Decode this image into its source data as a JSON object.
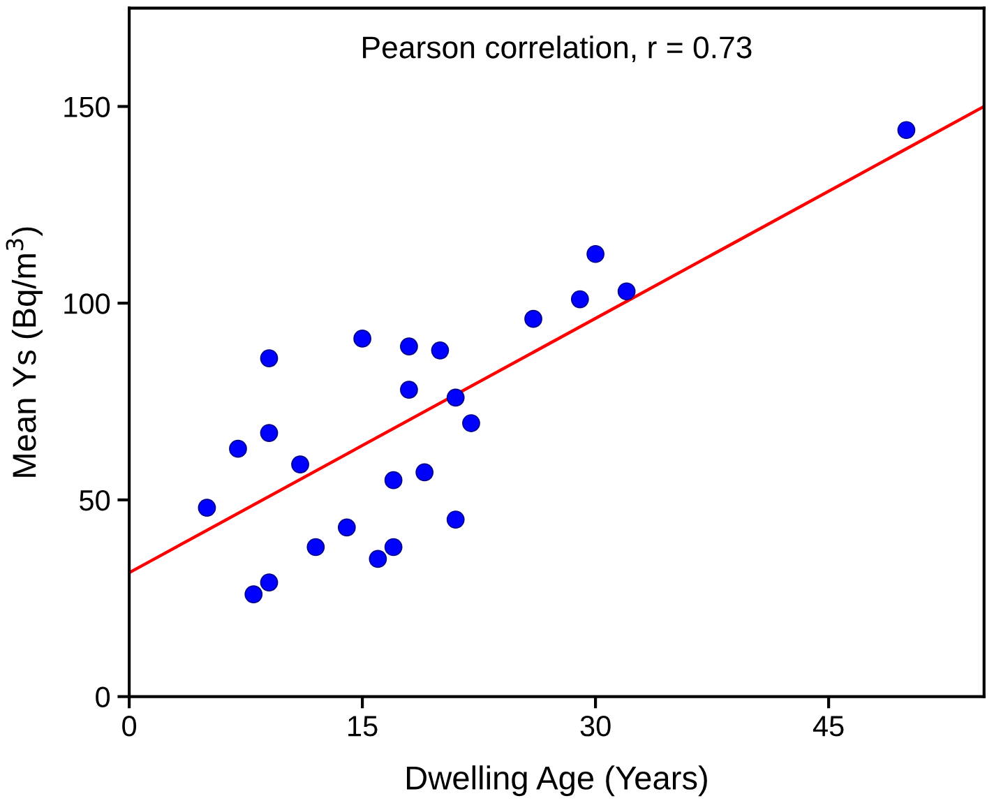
{
  "chart_data": {
    "type": "scatter",
    "xlabel": "Dwelling Age (Years)",
    "ylabel": "Mean Ys (Bq/m$^{3}$)",
    "annotations": [
      "Pearson correlation, r = 0.73"
    ],
    "series": [
      {
        "type": "scatter",
        "color": "#0000ff",
        "marker": "circle",
        "x": [
          5,
          7,
          9,
          9,
          11,
          8,
          9,
          12,
          14,
          15,
          16,
          17,
          17,
          19,
          18,
          18,
          20,
          21,
          22,
          21,
          26,
          29,
          30,
          32,
          50
        ],
        "values": [
          48,
          63,
          67,
          86,
          59,
          26,
          29,
          38,
          43,
          91,
          35,
          38,
          55,
          57,
          89,
          78,
          88,
          76,
          69.5,
          45,
          96,
          101,
          112.5,
          103,
          144
        ]
      },
      {
        "type": "line",
        "color": "#ff0000",
        "line_style": "solid",
        "x": [
          0,
          55
        ],
        "values": [
          31.5,
          150
        ]
      }
    ],
    "xlim": [
      0,
      55
    ],
    "ylim": [
      0,
      175
    ],
    "xticks": [
      0,
      15,
      30,
      45
    ],
    "yticks": [
      0,
      50,
      100,
      150
    ],
    "grid": false,
    "legend": false
  }
}
